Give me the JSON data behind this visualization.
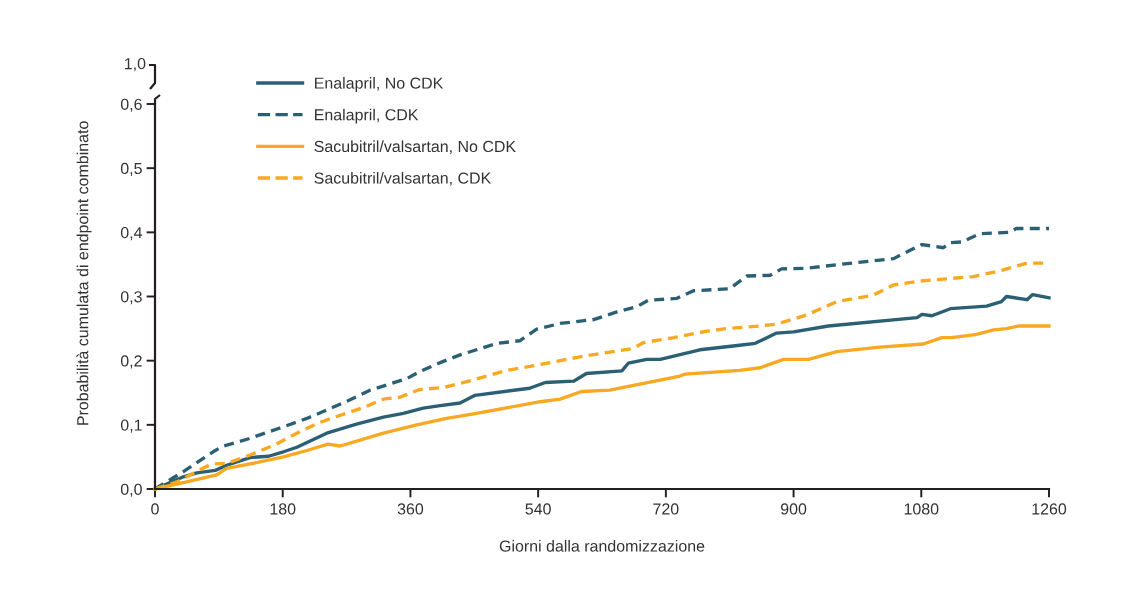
{
  "chart_data": {
    "type": "line",
    "xlabel": "Giorni dalla randomizzazione",
    "ylabel": "Probabilità cumulata di endpoint combinato",
    "annotations": [
      "1,0"
    ],
    "xlim": [
      0,
      1260
    ],
    "xticks": [
      0,
      180,
      360,
      540,
      720,
      900,
      1080,
      1260
    ],
    "ylim": [
      0,
      0.6
    ],
    "yticks": [
      {
        "value": 0,
        "label": "0,0"
      },
      {
        "value": 0.1,
        "label": "0,1"
      },
      {
        "value": 0.2,
        "label": "0,2"
      },
      {
        "value": 0.3,
        "label": "0,3"
      },
      {
        "value": 0.4,
        "label": "0,4"
      },
      {
        "value": 0.5,
        "label": "0,5"
      },
      {
        "value": 0.6,
        "label": "0,6"
      }
    ],
    "legend": "top left",
    "marker": "none",
    "series": [
      {
        "name": "Enalapril, No CDK",
        "color": "#2b5f74",
        "line_style": "solid",
        "x": [
          0,
          40,
          59,
          85,
          101,
          134,
          160,
          181,
          200,
          242,
          284,
          322,
          350,
          378,
          402,
          430,
          451,
          528,
          550,
          590,
          608,
          658,
          667,
          693,
          712,
          768,
          824,
          846,
          876,
          900,
          949,
          1074,
          1081,
          1095,
          1121,
          1172,
          1193,
          1200,
          1229,
          1237,
          1260
        ],
        "values": [
          0,
          0.019,
          0.025,
          0.029,
          0.037,
          0.049,
          0.051,
          0.058,
          0.065,
          0.087,
          0.101,
          0.112,
          0.118,
          0.126,
          0.13,
          0.134,
          0.146,
          0.157,
          0.166,
          0.168,
          0.18,
          0.184,
          0.196,
          0.202,
          0.202,
          0.217,
          0.224,
          0.227,
          0.243,
          0.245,
          0.254,
          0.267,
          0.272,
          0.27,
          0.281,
          0.285,
          0.292,
          0.3,
          0.295,
          0.303,
          0.298
        ]
      },
      {
        "name": "Enalapril, CDK",
        "color": "#2b5f74",
        "line_style": "dashed",
        "x": [
          0,
          40,
          82,
          94,
          134,
          176,
          214,
          242,
          275,
          303,
          355,
          373,
          402,
          430,
          482,
          514,
          538,
          571,
          618,
          651,
          679,
          695,
          735,
          759,
          810,
          834,
          867,
          883,
          918,
          965,
          1041,
          1055,
          1081,
          1111,
          1121,
          1137,
          1163,
          1205,
          1214,
          1260
        ],
        "values": [
          0,
          0.027,
          0.058,
          0.066,
          0.079,
          0.095,
          0.11,
          0.123,
          0.139,
          0.154,
          0.172,
          0.183,
          0.197,
          0.209,
          0.227,
          0.231,
          0.249,
          0.258,
          0.264,
          0.276,
          0.284,
          0.294,
          0.297,
          0.309,
          0.312,
          0.332,
          0.333,
          0.343,
          0.344,
          0.35,
          0.359,
          0.367,
          0.381,
          0.376,
          0.384,
          0.385,
          0.398,
          0.4,
          0.406,
          0.406
        ]
      },
      {
        "name": "Sacubitril/valsartan, No CDK",
        "color": "#f8a821",
        "line_style": "solid",
        "x": [
          0,
          40,
          87,
          101,
          143,
          181,
          214,
          244,
          261,
          322,
          369,
          411,
          449,
          543,
          571,
          601,
          641,
          740,
          747,
          824,
          853,
          886,
          921,
          961,
          1022,
          1083,
          1109,
          1123,
          1158,
          1182,
          1200,
          1217,
          1260
        ],
        "values": [
          0,
          0.01,
          0.022,
          0.032,
          0.041,
          0.05,
          0.06,
          0.07,
          0.067,
          0.087,
          0.1,
          0.11,
          0.117,
          0.136,
          0.14,
          0.152,
          0.154,
          0.176,
          0.179,
          0.185,
          0.189,
          0.202,
          0.202,
          0.214,
          0.221,
          0.226,
          0.236,
          0.236,
          0.241,
          0.248,
          0.25,
          0.254,
          0.254
        ]
      },
      {
        "name": "Sacubitril/valsartan, CDK",
        "color": "#f8a821",
        "line_style": "dashed",
        "x": [
          0,
          31,
          63,
          80,
          101,
          134,
          171,
          200,
          228,
          256,
          294,
          322,
          345,
          373,
          406,
          449,
          496,
          538,
          599,
          674,
          688,
          731,
          778,
          806,
          853,
          876,
          918,
          961,
          1012,
          1041,
          1078,
          1153,
          1191,
          1229,
          1260
        ],
        "values": [
          0,
          0.011,
          0.03,
          0.039,
          0.04,
          0.053,
          0.07,
          0.087,
          0.102,
          0.113,
          0.127,
          0.14,
          0.143,
          0.155,
          0.158,
          0.17,
          0.185,
          0.193,
          0.206,
          0.219,
          0.228,
          0.236,
          0.246,
          0.25,
          0.254,
          0.257,
          0.271,
          0.292,
          0.302,
          0.318,
          0.324,
          0.331,
          0.34,
          0.352,
          0.352
        ]
      }
    ]
  }
}
